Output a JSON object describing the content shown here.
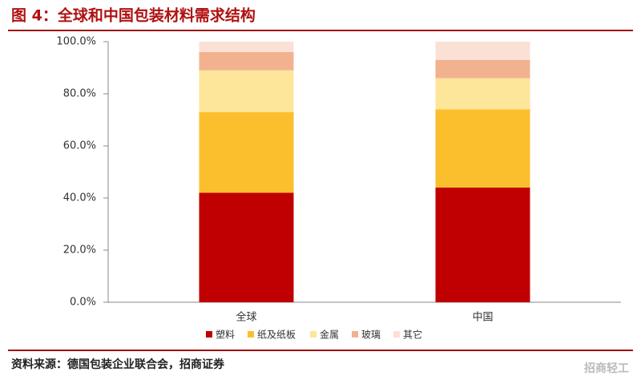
{
  "chart_data": {
    "type": "stacked_bar",
    "title": "图 4：全球和中国包装材料需求结构",
    "source": "资料来源：德国包装企业联合会，招商证券",
    "watermark": "招商轻工",
    "categories": [
      "全球",
      "中国"
    ],
    "series": [
      {
        "name": "塑料",
        "color": "#c00000",
        "values": [
          42,
          44
        ]
      },
      {
        "name": "纸及纸板",
        "color": "#fbbf2e",
        "values": [
          31,
          30
        ]
      },
      {
        "name": "金属",
        "color": "#fde59a",
        "values": [
          16,
          12
        ]
      },
      {
        "name": "玻璃",
        "color": "#f2b28f",
        "values": [
          7,
          7
        ]
      },
      {
        "name": "其它",
        "color": "#fbe0d6",
        "values": [
          4,
          7
        ]
      }
    ],
    "ylim": [
      0,
      100
    ],
    "yticks": [
      {
        "value": 0,
        "label": "0.0%"
      },
      {
        "value": 20,
        "label": "20.0%"
      },
      {
        "value": 40,
        "label": "40.0%"
      },
      {
        "value": 60,
        "label": "60.0%"
      },
      {
        "value": 80,
        "label": "80.0%"
      },
      {
        "value": 100,
        "label": "100.0%"
      }
    ],
    "legend": "bottom"
  }
}
